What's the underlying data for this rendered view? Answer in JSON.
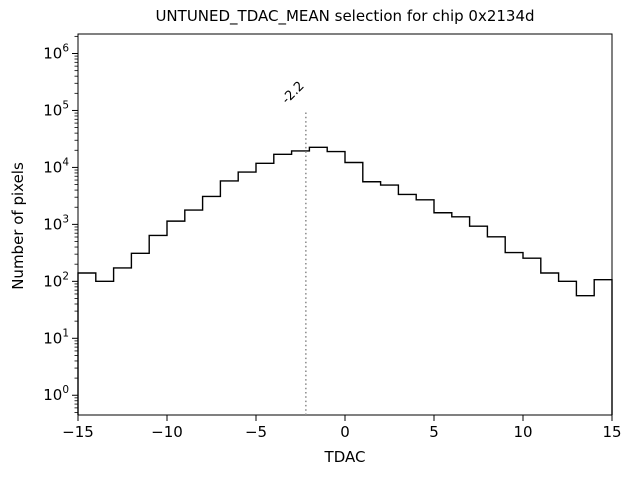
{
  "figure": {
    "background": "#ffffff",
    "text_color": "#000000"
  },
  "chart_data": {
    "type": "bar",
    "subtype": "step_histogram",
    "title": "UNTUNED_TDAC_MEAN selection for chip 0x2134d",
    "xlabel": "TDAC",
    "ylabel": "Number of pixels",
    "yscale": "log",
    "grid": false,
    "legend": false,
    "xlim": [
      -15,
      15
    ],
    "ylim": [
      0.45,
      2200000
    ],
    "x_ticks": [
      -15,
      -10,
      -5,
      0,
      5,
      10,
      15
    ],
    "y_tick_exponents": [
      0,
      1,
      2,
      3,
      4,
      5,
      6
    ],
    "line_color": "#000000",
    "bin_edges": [
      -15,
      -14,
      -13,
      -12,
      -11,
      -10,
      -9,
      -8,
      -7,
      -6,
      -5,
      -4,
      -3,
      -2,
      -1,
      0,
      1,
      2,
      3,
      4,
      5,
      6,
      7,
      8,
      9,
      10,
      11,
      12,
      13,
      14,
      15
    ],
    "counts": [
      140,
      100,
      172,
      310,
      640,
      1140,
      1780,
      3100,
      5800,
      8300,
      11800,
      17000,
      19500,
      22500,
      19000,
      12200,
      5600,
      4900,
      3350,
      2700,
      1600,
      1360,
      930,
      605,
      320,
      255,
      140,
      100,
      56,
      107
    ],
    "vline": {
      "x": -2.2,
      "label": "-2.2",
      "y_top": 100000,
      "color": "#909090",
      "label_color": "#8a8a8a",
      "style": "dotted"
    }
  }
}
